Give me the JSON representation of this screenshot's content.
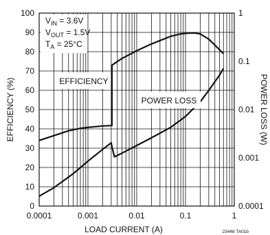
{
  "chart_data": {
    "type": "line",
    "x_scale": "log",
    "y_scale": "linear",
    "y2_scale": "log",
    "grid": true,
    "xlabel": "LOAD CURRENT (A)",
    "ylabel": "EFFICIENCY (%)",
    "y2label": "POWER LOSS (W)",
    "xlim": [
      0.0001,
      1
    ],
    "ylim": [
      0,
      100
    ],
    "y2lim": [
      0.0001,
      1
    ],
    "x_ticks": [
      "0.0001",
      "0.001",
      "0.01",
      "0.1",
      "1"
    ],
    "y_ticks": [
      "0",
      "10",
      "20",
      "30",
      "40",
      "50",
      "60",
      "70",
      "80",
      "90",
      "100"
    ],
    "y2_ticks": [
      "0.0001",
      "0.001",
      "0.01",
      "0.1",
      "1"
    ],
    "conditions": [
      {
        "sym": "V",
        "sub": "IN",
        "val": " = 3.6V"
      },
      {
        "sym": "V",
        "sub": "OUT",
        "val": " = 1.5V"
      },
      {
        "sym": "T",
        "sub": "A",
        "val": " = 25°C"
      }
    ],
    "footnote": "23448 TA01b",
    "series": [
      {
        "name": "EFFICIENCY",
        "axis": "left",
        "x": [
          0.0001,
          0.0002,
          0.0004,
          0.0007,
          0.001,
          0.002,
          0.003,
          0.0031,
          0.0031,
          0.005,
          0.01,
          0.02,
          0.05,
          0.08,
          0.1,
          0.15,
          0.2,
          0.3,
          0.5,
          0.6
        ],
        "y": [
          34,
          36.5,
          39,
          40.3,
          40.8,
          41.5,
          41.7,
          41.7,
          73,
          76.5,
          80.5,
          84,
          88,
          89.2,
          89.5,
          89.7,
          89.2,
          86.5,
          81,
          79
        ]
      },
      {
        "name": "POWER LOSS",
        "axis": "right",
        "x": [
          0.0001,
          0.0002,
          0.0005,
          0.001,
          0.002,
          0.003,
          0.0031,
          0.0035,
          0.005,
          0.01,
          0.02,
          0.05,
          0.1,
          0.2,
          0.3,
          0.5,
          0.6
        ],
        "y": [
          0.00016,
          0.00024,
          0.00047,
          0.00085,
          0.0015,
          0.00205,
          0.0017,
          0.00105,
          0.00125,
          0.0018,
          0.0026,
          0.0043,
          0.0072,
          0.0145,
          0.025,
          0.052,
          0.071
        ]
      }
    ]
  }
}
